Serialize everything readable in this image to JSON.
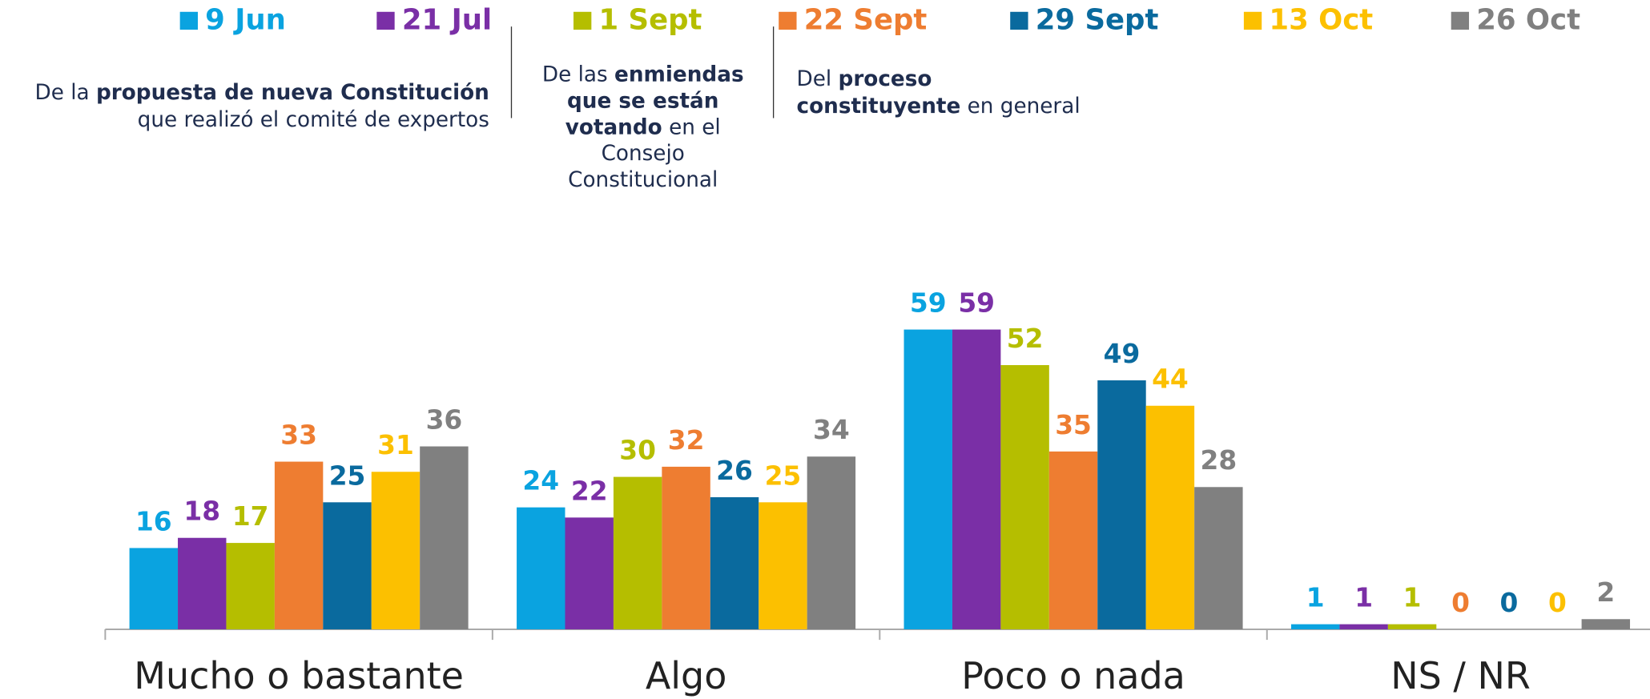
{
  "chart_data": {
    "type": "bar",
    "categories": [
      "Mucho o bastante",
      "Algo",
      "Poco o nada",
      "NS / NR"
    ],
    "series": [
      {
        "name": "9 Jun",
        "color": "#0aa3e0",
        "values": [
          16,
          24,
          59,
          1
        ]
      },
      {
        "name": "21 Jul",
        "color": "#7a2fa6",
        "values": [
          18,
          22,
          59,
          1
        ]
      },
      {
        "name": "1 Sept",
        "color": "#b5be00",
        "values": [
          17,
          30,
          52,
          1
        ]
      },
      {
        "name": "22 Sept",
        "color": "#ee7d31",
        "values": [
          33,
          32,
          35,
          0
        ]
      },
      {
        "name": "29 Sept",
        "color": "#0a6a9e",
        "values": [
          25,
          26,
          49,
          0
        ]
      },
      {
        "name": "13 Oct",
        "color": "#fcc000",
        "values": [
          31,
          25,
          44,
          0
        ]
      },
      {
        "name": "26 Oct",
        "color": "#808080",
        "values": [
          36,
          34,
          28,
          2
        ]
      }
    ],
    "ylim": [
      0,
      70
    ],
    "legend": "top",
    "annotations": [
      {
        "align": "right",
        "lines": [
          [
            {
              "text": "De la "
            },
            {
              "text": "propuesta de nueva Constitución",
              "bold": true
            }
          ],
          [
            {
              "text": "que realizó el comité de expertos"
            }
          ]
        ]
      },
      {
        "align": "center",
        "lines": [
          [
            {
              "text": "De las "
            },
            {
              "text": "enmiendas",
              "bold": true
            }
          ],
          [
            {
              "text": "que se están",
              "bold": true
            }
          ],
          [
            {
              "text": "votando",
              "bold": true
            },
            {
              "text": " en el"
            }
          ],
          [
            {
              "text": "Consejo"
            }
          ],
          [
            {
              "text": "Constitucional"
            }
          ]
        ]
      },
      {
        "align": "left",
        "lines": [
          [
            {
              "text": "Del "
            },
            {
              "text": "proceso",
              "bold": true
            }
          ],
          [
            {
              "text": "constituyente",
              "bold": true
            },
            {
              "text": " en general"
            }
          ]
        ]
      }
    ]
  }
}
